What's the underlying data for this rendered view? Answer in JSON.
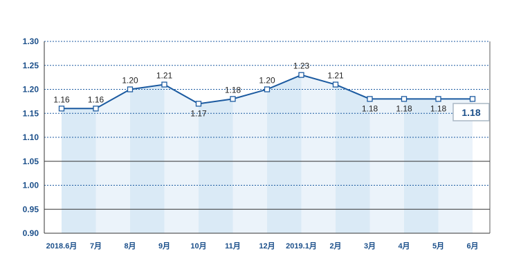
{
  "chart_data": {
    "type": "line",
    "categories": [
      "2018.6月",
      "7月",
      "8月",
      "9月",
      "10月",
      "11月",
      "12月",
      "2019.1月",
      "2月",
      "3月",
      "4月",
      "5月",
      "6月"
    ],
    "values": [
      1.16,
      1.16,
      1.2,
      1.21,
      1.17,
      1.18,
      1.2,
      1.23,
      1.21,
      1.18,
      1.18,
      1.18,
      1.18
    ],
    "data_labels": [
      "1.16",
      "1.16",
      "1.20",
      "1.21",
      "1.17",
      "1.18",
      "1.20",
      "1.23",
      "1.21",
      "1.18",
      "1.18",
      "1.18",
      "1.18"
    ],
    "y_ticks": [
      "0.90",
      "0.95",
      "1.00",
      "1.05",
      "1.10",
      "1.15",
      "1.20",
      "1.25",
      "1.30"
    ],
    "ylim": [
      0.9,
      1.3
    ],
    "highlight_label": "1.18",
    "grid": true,
    "colors": {
      "line": "#1b5aa0",
      "marker_fill": "#ffffff",
      "grid_dotted": "#1b5aa0",
      "grid_solid": "#333333",
      "axis_text": "#1b4f8a",
      "fill_a": "#d6e8f5",
      "fill_b": "#e9f2fa",
      "highlight_border": "#a9b7c4"
    }
  }
}
